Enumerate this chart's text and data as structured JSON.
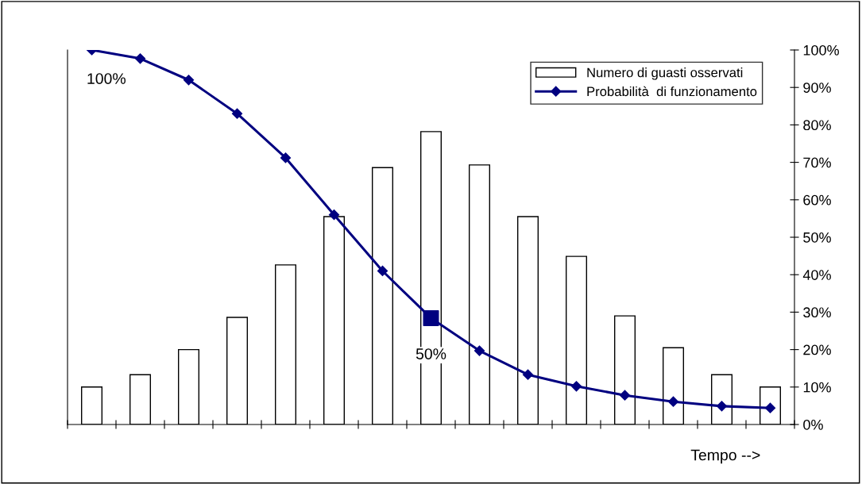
{
  "chart_data": {
    "type": "bar",
    "categories": [
      null,
      null,
      null,
      null,
      null,
      null,
      null,
      null,
      null,
      null,
      null,
      null,
      null,
      null,
      null
    ],
    "series": [
      {
        "name": "Numero di guasti osservati",
        "color": "#ffffff",
        "values": [
          10,
          13.3,
          20,
          28.6,
          42.6,
          55.5,
          68.6,
          78.2,
          69.3,
          55.5,
          44.9,
          29,
          20.5,
          13.3,
          10
        ]
      },
      {
        "name": "Probabilità  di funzionamento",
        "type": "line",
        "color": "#000080",
        "marker": "diamond",
        "line_style": "solid",
        "values": [
          100,
          97.7,
          92,
          83,
          71.2,
          56,
          41,
          28.4,
          19.7,
          13.3,
          10.2,
          7.8,
          6.1,
          4.9,
          4.4
        ]
      },
      {
        "type": "scatter",
        "color": "#000080",
        "marker": "square",
        "values": [
          null,
          null,
          null,
          null,
          null,
          null,
          null,
          28.4,
          null,
          null,
          null,
          null,
          null,
          null,
          null
        ]
      }
    ],
    "ylim": [
      0,
      100
    ],
    "yticks": [
      {
        "value": 0,
        "label": "0%"
      },
      {
        "value": 10,
        "label": "10%"
      },
      {
        "value": 20,
        "label": "20%"
      },
      {
        "value": 30,
        "label": "30%"
      },
      {
        "value": 40,
        "label": "40%"
      },
      {
        "value": 50,
        "label": "50%"
      },
      {
        "value": 60,
        "label": "60%"
      },
      {
        "value": 70,
        "label": "70%"
      },
      {
        "value": 80,
        "label": "80%"
      },
      {
        "value": 90,
        "label": "90%"
      },
      {
        "value": 100,
        "label": "100%"
      }
    ],
    "annotations": [
      "100%",
      "50%",
      "Tempo -->"
    ],
    "legend": "top right"
  }
}
